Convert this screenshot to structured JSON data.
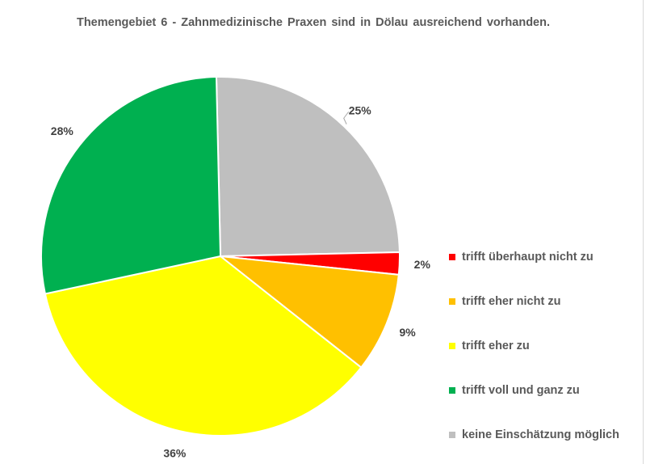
{
  "chart_data": {
    "type": "pie",
    "title": "Themengebiet 6   -   Zahnmedizinische Praxen sind in Dölau ausreichend vorhanden.",
    "slices": [
      {
        "label": "keine Einschätzung möglich",
        "value": 25,
        "data_label": "25%",
        "color": "#BFBFBF"
      },
      {
        "label": "trifft überhaupt nicht zu",
        "value": 2,
        "data_label": "2%",
        "color": "#FF0000"
      },
      {
        "label": "trifft eher nicht zu",
        "value": 9,
        "data_label": "9%",
        "color": "#FFC000"
      },
      {
        "label": "trifft eher zu",
        "value": 36,
        "data_label": "36%",
        "color": "#FFFF00"
      },
      {
        "label": "trifft voll und ganz zu",
        "value": 28,
        "data_label": "28%",
        "color": "#00B050"
      }
    ],
    "legend_order": [
      1,
      2,
      3,
      4,
      0
    ],
    "legend_position": "right"
  }
}
